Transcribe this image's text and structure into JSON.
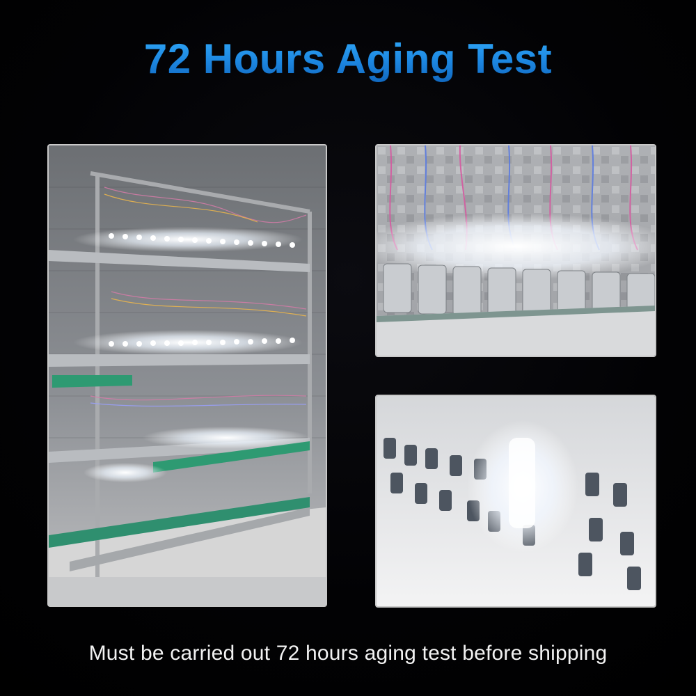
{
  "title": "72 Hours Aging Test",
  "caption": "Must be carried out 72 hours aging test before shipping",
  "colors": {
    "background": "#020204",
    "title_blue": "#1a8fe8",
    "caption": "#f2f2f2",
    "photo_border": "#c9c9c9"
  },
  "photos": [
    {
      "name": "aging-rack-photo"
    },
    {
      "name": "bulbs-closeup-photo"
    },
    {
      "name": "bases-closeup-photo"
    }
  ]
}
